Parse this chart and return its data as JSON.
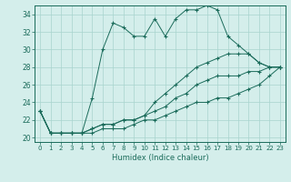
{
  "title": "",
  "xlabel": "Humidex (Indice chaleur)",
  "ylabel": "",
  "bg_color": "#d4eeeb",
  "grid_color": "#a8d4ce",
  "line_color": "#1a6b5a",
  "xlim": [
    -0.5,
    23.5
  ],
  "ylim": [
    19.5,
    35.0
  ],
  "yticks": [
    20,
    22,
    24,
    26,
    28,
    30,
    32,
    34
  ],
  "xticks": [
    0,
    1,
    2,
    3,
    4,
    5,
    6,
    7,
    8,
    9,
    10,
    11,
    12,
    13,
    14,
    15,
    16,
    17,
    18,
    19,
    20,
    21,
    22,
    23
  ],
  "series": [
    [
      23,
      20.5,
      20.5,
      20.5,
      20.5,
      24.5,
      30,
      33,
      32.5,
      31.5,
      31.5,
      33.5,
      31.5,
      33.5,
      34.5,
      34.5,
      35,
      34.5,
      31.5,
      30.5,
      29.5,
      28.5,
      28,
      28
    ],
    [
      23,
      20.5,
      20.5,
      20.5,
      20.5,
      21,
      21.5,
      21.5,
      22,
      22,
      22.5,
      24,
      25,
      26,
      27,
      28,
      28.5,
      29,
      29.5,
      29.5,
      29.5,
      28.5,
      28,
      28
    ],
    [
      23,
      20.5,
      20.5,
      20.5,
      20.5,
      21,
      21.5,
      21.5,
      22,
      22,
      22.5,
      23,
      23.5,
      24.5,
      25,
      26,
      26.5,
      27,
      27,
      27,
      27.5,
      27.5,
      28,
      28
    ],
    [
      23,
      20.5,
      20.5,
      20.5,
      20.5,
      20.5,
      21,
      21,
      21,
      21.5,
      22,
      22,
      22.5,
      23,
      23.5,
      24,
      24,
      24.5,
      24.5,
      25,
      25.5,
      26,
      27,
      28
    ]
  ]
}
